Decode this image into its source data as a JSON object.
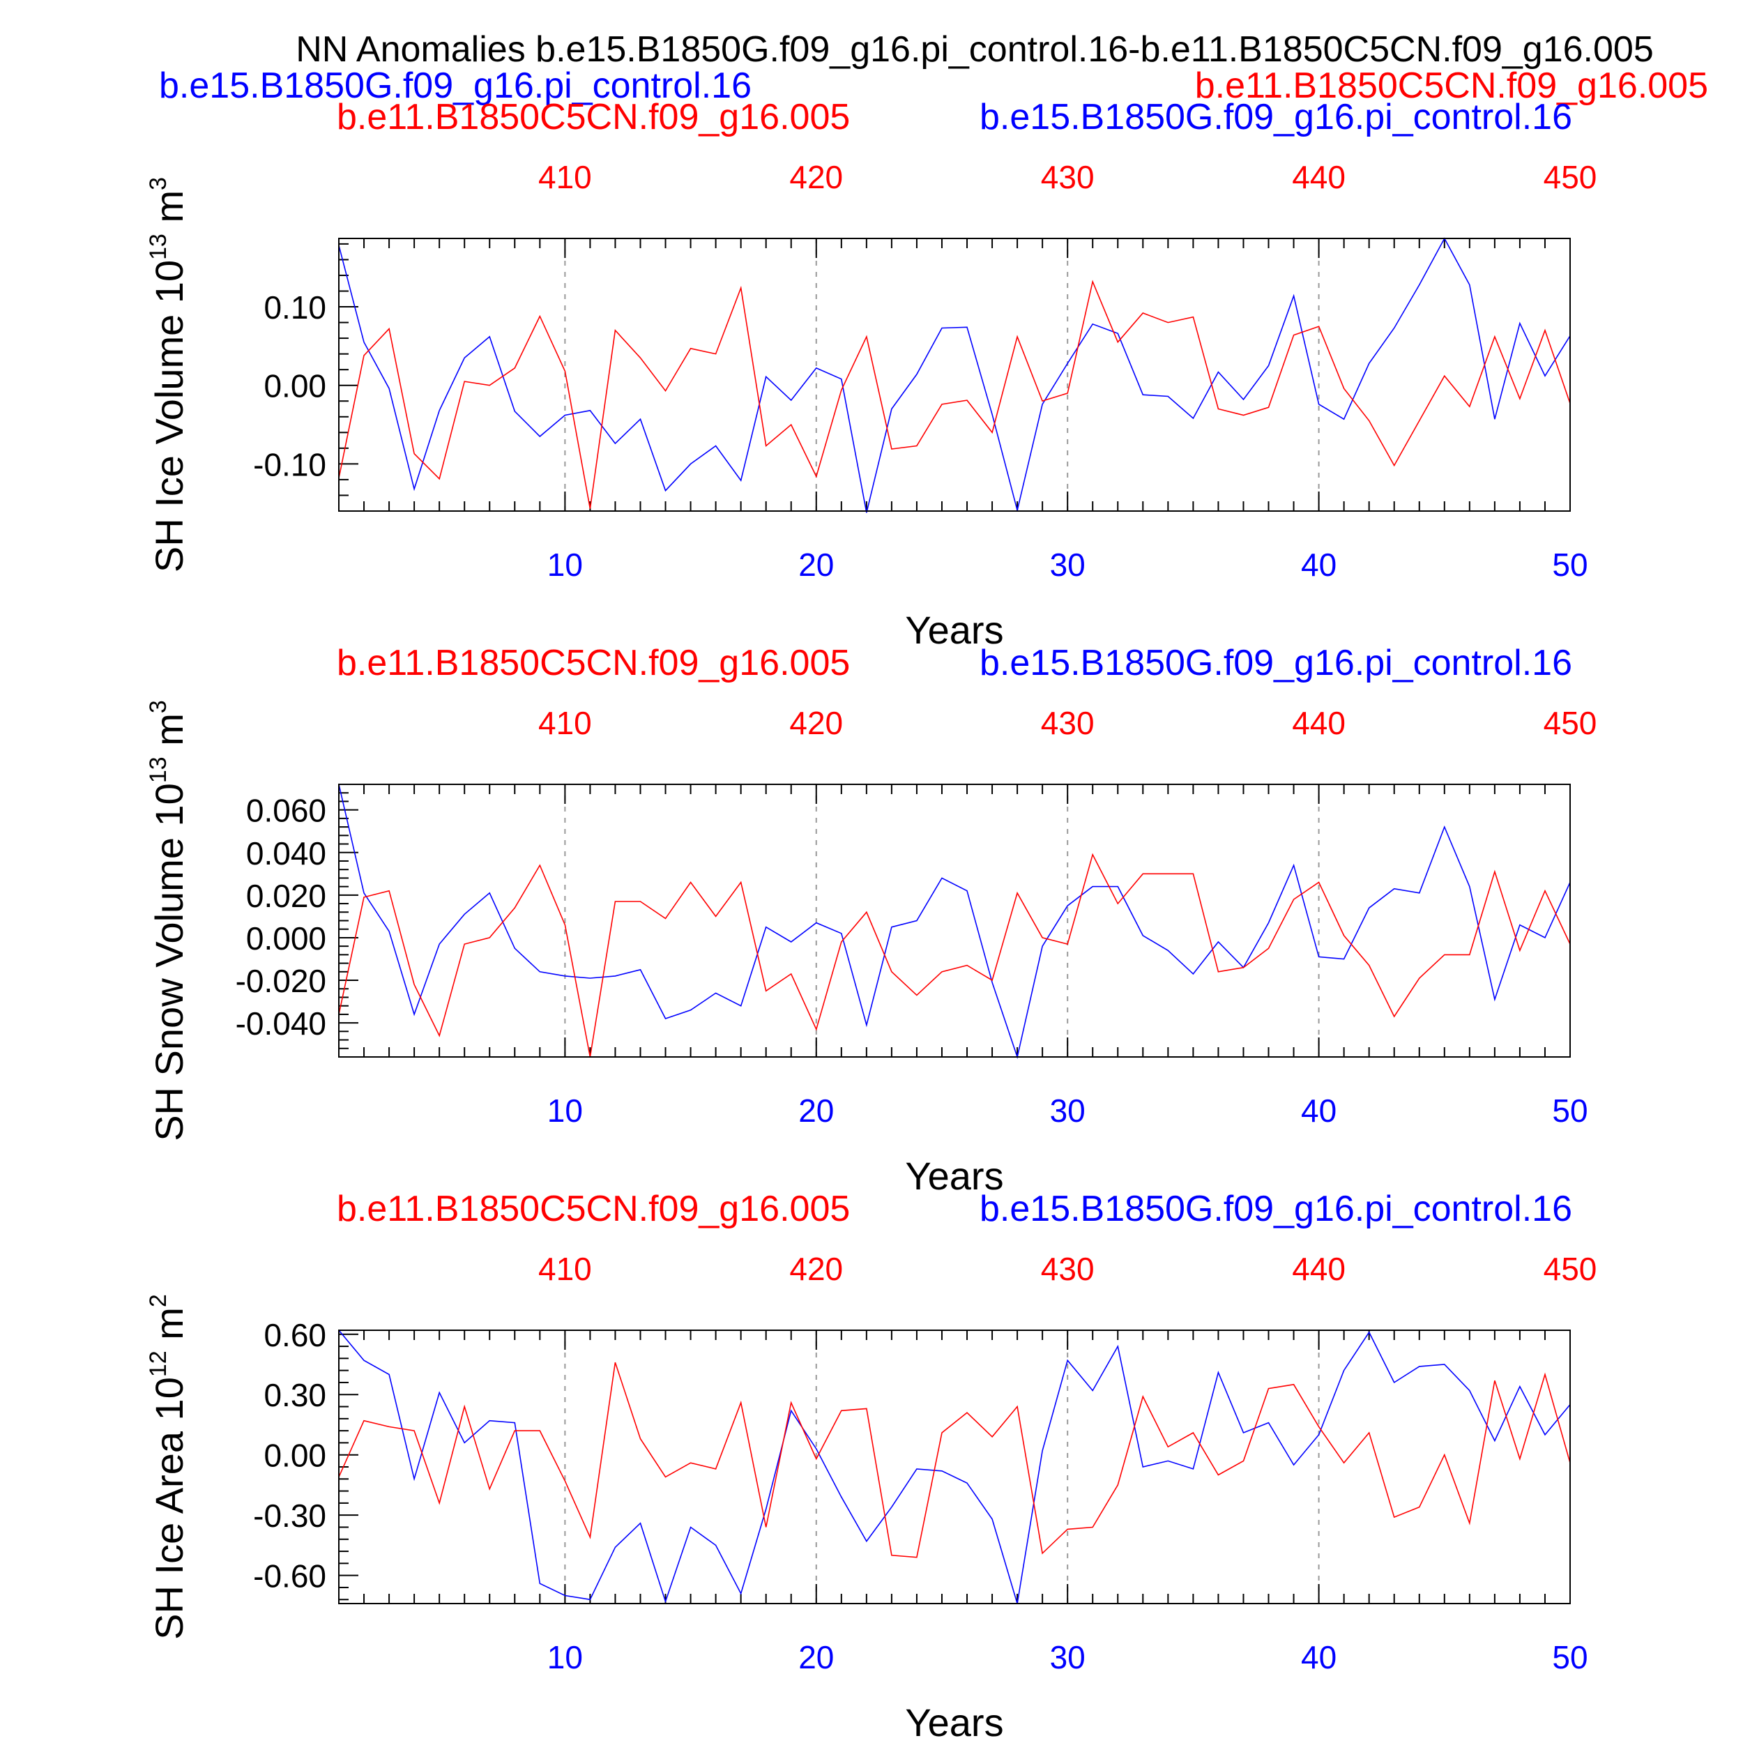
{
  "figure": {
    "title": "NN Anomalies b.e15.B1850G.f09_g16.pi_control.16-b.e11.B1850C5CN.f09_g16.005",
    "legend_blue": "b.e15.B1850G.f09_g16.pi_control.16",
    "legend_red": "b.e11.B1850C5CN.f09_g16.005"
  },
  "colors": {
    "blue": "#0000ff",
    "red": "#ff0000",
    "axis": "#000000",
    "grid": "#999999"
  },
  "chart_data": [
    {
      "type": "line",
      "subtitle_left": "b.e11.B1850C5CN.f09_g16.005",
      "subtitle_right": "b.e15.B1850G.f09_g16.pi_control.16",
      "ylabel": "SH Ice Volume 10",
      "ylabel_exp": "13",
      "ylabel_unit": " m",
      "ylabel_unit_exp": "3",
      "xlabel": "Years",
      "xlim": [
        1,
        50
      ],
      "top_xlim": [
        401,
        450
      ],
      "ylim": [
        -0.16,
        0.187
      ],
      "yticks": [
        -0.1,
        0.0,
        0.1
      ],
      "ytick_labels": [
        "-0.10",
        "0.00",
        "0.10"
      ],
      "bottom_ticks": [
        10,
        20,
        30,
        40,
        50
      ],
      "bottom_tick_labels": [
        "10",
        "20",
        "30",
        "40",
        "50"
      ],
      "top_ticks": [
        10,
        20,
        30,
        40,
        50
      ],
      "top_tick_labels": [
        "410",
        "420",
        "430",
        "440",
        "450"
      ],
      "series": [
        {
          "color": "blue",
          "x": [
            1,
            2,
            3,
            4,
            5,
            6,
            7,
            8,
            9,
            10,
            11,
            12,
            13,
            14,
            15,
            16,
            17,
            18,
            19,
            20,
            21,
            22,
            23,
            24,
            25,
            26,
            27,
            28,
            29,
            30,
            31,
            32,
            33,
            34,
            35,
            36,
            37,
            38,
            39,
            40,
            41,
            42,
            43,
            44,
            45,
            46,
            47,
            48,
            49,
            50
          ],
          "values": [
            0.178,
            0.055,
            -0.004,
            -0.132,
            -0.032,
            0.035,
            0.062,
            -0.033,
            -0.065,
            -0.038,
            -0.032,
            -0.074,
            -0.043,
            -0.134,
            -0.1,
            -0.077,
            -0.121,
            0.011,
            -0.019,
            0.022,
            0.008,
            -0.162,
            -0.03,
            0.014,
            0.073,
            0.074,
            -0.037,
            -0.159,
            -0.024,
            0.028,
            0.078,
            0.066,
            -0.012,
            -0.014,
            -0.042,
            0.017,
            -0.018,
            0.025,
            0.114,
            -0.024,
            -0.043,
            0.028,
            0.073,
            0.128,
            0.187,
            0.128,
            -0.043,
            0.079,
            0.012,
            0.063
          ]
        },
        {
          "color": "red",
          "x": [
            1,
            2,
            3,
            4,
            5,
            6,
            7,
            8,
            9,
            10,
            11,
            12,
            13,
            14,
            15,
            16,
            17,
            18,
            19,
            20,
            21,
            22,
            23,
            24,
            25,
            26,
            27,
            28,
            29,
            30,
            31,
            32,
            33,
            34,
            35,
            36,
            37,
            38,
            39,
            40,
            41,
            42,
            43,
            44,
            45,
            46,
            47,
            48,
            49,
            50
          ],
          "values": [
            -0.118,
            0.038,
            0.072,
            -0.087,
            -0.119,
            0.005,
            0.0,
            0.022,
            0.088,
            0.018,
            -0.157,
            0.07,
            0.035,
            -0.007,
            0.047,
            0.04,
            0.124,
            -0.077,
            -0.05,
            -0.116,
            -0.006,
            0.062,
            -0.081,
            -0.077,
            -0.024,
            -0.019,
            -0.06,
            0.062,
            -0.02,
            -0.01,
            0.132,
            0.055,
            0.092,
            0.08,
            0.087,
            -0.03,
            -0.038,
            -0.028,
            0.064,
            0.075,
            -0.004,
            -0.045,
            -0.102,
            -0.045,
            0.012,
            -0.027,
            0.062,
            -0.017,
            0.07,
            -0.023
          ]
        }
      ]
    },
    {
      "type": "line",
      "subtitle_left": "b.e11.B1850C5CN.f09_g16.005",
      "subtitle_right": "b.e15.B1850G.f09_g16.pi_control.16",
      "ylabel": "SH Snow Volume 10",
      "ylabel_exp": "13",
      "ylabel_unit": " m",
      "ylabel_unit_exp": "3",
      "xlabel": "Years",
      "xlim": [
        1,
        50
      ],
      "top_xlim": [
        401,
        450
      ],
      "ylim": [
        -0.056,
        0.072
      ],
      "yticks": [
        -0.04,
        -0.02,
        0.0,
        0.02,
        0.04,
        0.06
      ],
      "ytick_labels": [
        "-0.040",
        "-0.020",
        "0.000",
        "0.020",
        "0.040",
        "0.060"
      ],
      "bottom_ticks": [
        10,
        20,
        30,
        40,
        50
      ],
      "bottom_tick_labels": [
        "10",
        "20",
        "30",
        "40",
        "50"
      ],
      "top_ticks": [
        10,
        20,
        30,
        40,
        50
      ],
      "top_tick_labels": [
        "410",
        "420",
        "430",
        "440",
        "450"
      ],
      "series": [
        {
          "color": "blue",
          "x": [
            1,
            2,
            3,
            4,
            5,
            6,
            7,
            8,
            9,
            10,
            11,
            12,
            13,
            14,
            15,
            16,
            17,
            18,
            19,
            20,
            21,
            22,
            23,
            24,
            25,
            26,
            27,
            28,
            29,
            30,
            31,
            32,
            33,
            34,
            35,
            36,
            37,
            38,
            39,
            40,
            41,
            42,
            43,
            44,
            45,
            46,
            47,
            48,
            49,
            50
          ],
          "values": [
            0.072,
            0.021,
            0.003,
            -0.036,
            -0.003,
            0.011,
            0.021,
            -0.005,
            -0.016,
            -0.018,
            -0.019,
            -0.018,
            -0.015,
            -0.038,
            -0.034,
            -0.026,
            -0.032,
            0.005,
            -0.002,
            0.007,
            0.002,
            -0.041,
            0.005,
            0.008,
            0.028,
            0.022,
            -0.021,
            -0.056,
            -0.004,
            0.015,
            0.024,
            0.024,
            0.001,
            -0.006,
            -0.017,
            -0.002,
            -0.014,
            0.007,
            0.034,
            -0.009,
            -0.01,
            0.014,
            0.023,
            0.021,
            0.052,
            0.024,
            -0.029,
            0.006,
            0.0,
            0.026
          ]
        },
        {
          "color": "red",
          "x": [
            1,
            2,
            3,
            4,
            5,
            6,
            7,
            8,
            9,
            10,
            11,
            12,
            13,
            14,
            15,
            16,
            17,
            18,
            19,
            20,
            21,
            22,
            23,
            24,
            25,
            26,
            27,
            28,
            29,
            30,
            31,
            32,
            33,
            34,
            35,
            36,
            37,
            38,
            39,
            40,
            41,
            42,
            43,
            44,
            45,
            46,
            47,
            48,
            49,
            50
          ],
          "values": [
            -0.036,
            0.019,
            0.022,
            -0.022,
            -0.046,
            -0.003,
            0.0,
            0.014,
            0.034,
            0.006,
            -0.056,
            0.017,
            0.017,
            0.009,
            0.026,
            0.01,
            0.026,
            -0.025,
            -0.017,
            -0.043,
            -0.002,
            0.012,
            -0.016,
            -0.027,
            -0.016,
            -0.013,
            -0.02,
            0.021,
            0.0,
            -0.003,
            0.039,
            0.016,
            0.03,
            0.03,
            0.03,
            -0.016,
            -0.014,
            -0.005,
            0.018,
            0.026,
            0.001,
            -0.013,
            -0.037,
            -0.019,
            -0.008,
            -0.008,
            0.031,
            -0.006,
            0.022,
            -0.003
          ]
        }
      ]
    },
    {
      "type": "line",
      "subtitle_left": "b.e11.B1850C5CN.f09_g16.005",
      "subtitle_right": "b.e15.B1850G.f09_g16.pi_control.16",
      "ylabel": "SH Ice Area 10",
      "ylabel_exp": "12",
      "ylabel_unit": " m",
      "ylabel_unit_exp": "2",
      "xlabel": "Years",
      "xlim": [
        1,
        50
      ],
      "top_xlim": [
        401,
        450
      ],
      "ylim": [
        -0.74,
        0.62
      ],
      "yticks": [
        -0.6,
        -0.3,
        0.0,
        0.3,
        0.6
      ],
      "ytick_labels": [
        "-0.60",
        "-0.30",
        "0.00",
        "0.30",
        "0.60"
      ],
      "bottom_ticks": [
        10,
        20,
        30,
        40,
        50
      ],
      "bottom_tick_labels": [
        "10",
        "20",
        "30",
        "40",
        "50"
      ],
      "top_ticks": [
        10,
        20,
        30,
        40,
        50
      ],
      "top_tick_labels": [
        "410",
        "420",
        "430",
        "440",
        "450"
      ],
      "series": [
        {
          "color": "blue",
          "x": [
            1,
            2,
            3,
            4,
            5,
            6,
            7,
            8,
            9,
            10,
            11,
            12,
            13,
            14,
            15,
            16,
            17,
            18,
            19,
            20,
            21,
            22,
            23,
            24,
            25,
            26,
            27,
            28,
            29,
            30,
            31,
            32,
            33,
            34,
            35,
            36,
            37,
            38,
            39,
            40,
            41,
            42,
            43,
            44,
            45,
            46,
            47,
            48,
            49,
            50
          ],
          "values": [
            0.62,
            0.47,
            0.4,
            -0.12,
            0.31,
            0.06,
            0.17,
            0.16,
            -0.64,
            -0.7,
            -0.72,
            -0.46,
            -0.34,
            -0.73,
            -0.36,
            -0.45,
            -0.69,
            -0.27,
            0.22,
            0.03,
            -0.21,
            -0.43,
            -0.26,
            -0.07,
            -0.08,
            -0.14,
            -0.32,
            -0.74,
            0.02,
            0.47,
            0.32,
            0.54,
            -0.06,
            -0.03,
            -0.07,
            0.41,
            0.11,
            0.16,
            -0.05,
            0.1,
            0.42,
            0.61,
            0.36,
            0.44,
            0.45,
            0.32,
            0.07,
            0.34,
            0.1,
            0.25
          ]
        },
        {
          "color": "red",
          "x": [
            1,
            2,
            3,
            4,
            5,
            6,
            7,
            8,
            9,
            10,
            11,
            12,
            13,
            14,
            15,
            16,
            17,
            18,
            19,
            20,
            21,
            22,
            23,
            24,
            25,
            26,
            27,
            28,
            29,
            30,
            31,
            32,
            33,
            34,
            35,
            36,
            37,
            38,
            39,
            40,
            41,
            42,
            43,
            44,
            45,
            46,
            47,
            48,
            49,
            50
          ],
          "values": [
            -0.11,
            0.17,
            0.14,
            0.12,
            -0.24,
            0.24,
            -0.17,
            0.12,
            0.12,
            -0.13,
            -0.41,
            0.46,
            0.08,
            -0.11,
            -0.04,
            -0.07,
            0.26,
            -0.36,
            0.26,
            -0.02,
            0.22,
            0.23,
            -0.5,
            -0.51,
            0.11,
            0.21,
            0.09,
            0.24,
            -0.49,
            -0.37,
            -0.36,
            -0.15,
            0.29,
            0.04,
            0.11,
            -0.1,
            -0.03,
            0.33,
            0.35,
            0.14,
            -0.04,
            0.11,
            -0.31,
            -0.26,
            0.0,
            -0.34,
            0.37,
            -0.02,
            0.4,
            -0.04
          ]
        }
      ]
    }
  ]
}
